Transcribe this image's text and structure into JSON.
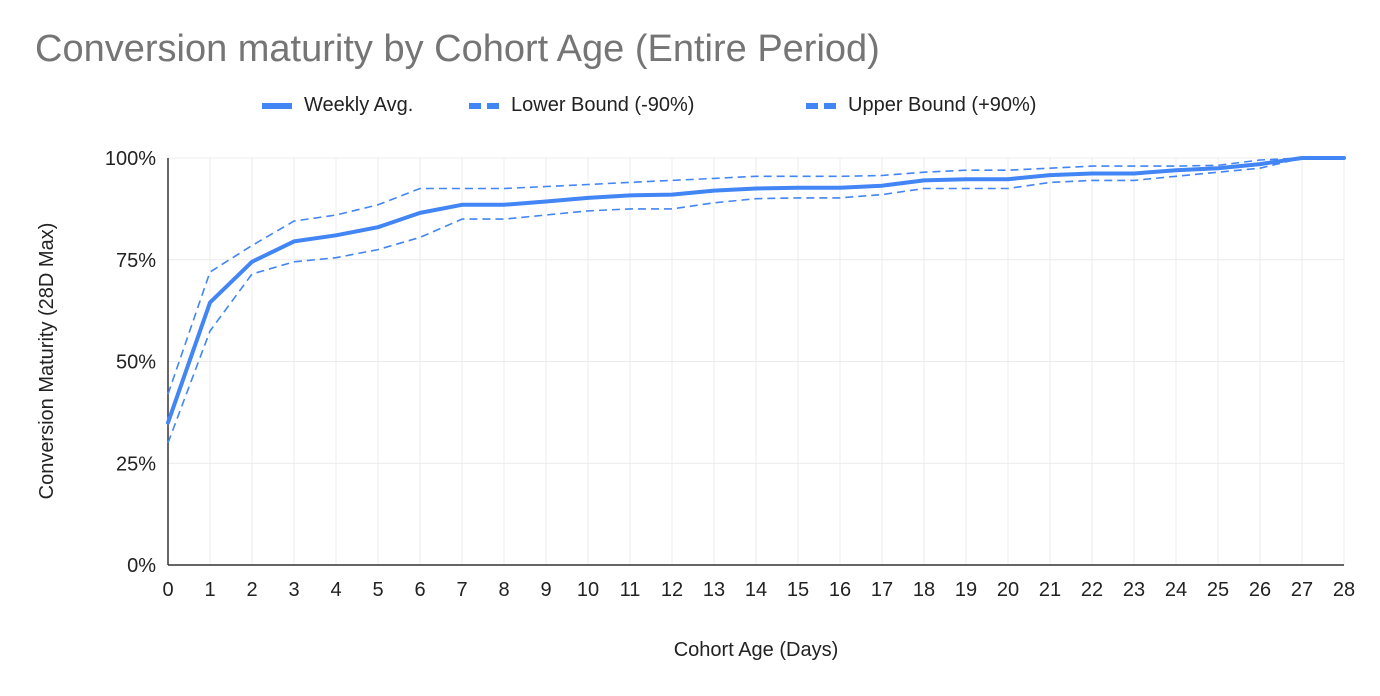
{
  "chart_data": {
    "type": "line",
    "title": "Conversion maturity by Cohort Age (Entire Period)",
    "xlabel": "Cohort Age (Days)",
    "ylabel": "Conversion Maturity (28D Max)",
    "x": [
      0,
      1,
      2,
      3,
      4,
      5,
      6,
      7,
      8,
      9,
      10,
      11,
      12,
      13,
      14,
      15,
      16,
      17,
      18,
      19,
      20,
      21,
      22,
      23,
      24,
      25,
      26,
      27,
      28
    ],
    "xlim": [
      0,
      28
    ],
    "ylim": [
      0,
      100
    ],
    "y_ticks": [
      "0%",
      "25%",
      "50%",
      "75%",
      "100%"
    ],
    "y_tick_values": [
      0,
      25,
      50,
      75,
      100
    ],
    "grid": true,
    "legend_position": "top",
    "series": [
      {
        "name": "Weekly Avg.",
        "style": "solid",
        "color": "#4285f4",
        "values": [
          35,
          64.5,
          74.5,
          79.5,
          81,
          83,
          86.5,
          88.5,
          88.5,
          89.3,
          90.2,
          90.8,
          91,
          92,
          92.5,
          92.7,
          92.7,
          93.2,
          94.5,
          94.8,
          94.8,
          95.8,
          96.2,
          96.2,
          97,
          97.5,
          98.5,
          100,
          100
        ]
      },
      {
        "name": "Lower Bound (-90%)",
        "style": "dashed",
        "color": "#4285f4",
        "values": [
          30,
          57.5,
          71.5,
          74.5,
          75.5,
          77.5,
          80.5,
          85,
          85,
          86,
          87,
          87.5,
          87.5,
          89,
          90,
          90.2,
          90.2,
          91,
          92.5,
          92.5,
          92.5,
          94,
          94.5,
          94.5,
          95.5,
          96.5,
          97.5,
          100,
          100
        ]
      },
      {
        "name": "Upper Bound (+90%)",
        "style": "dashed",
        "color": "#4285f4",
        "values": [
          42,
          72,
          78.5,
          84.5,
          86,
          88.5,
          92.5,
          92.5,
          92.5,
          93,
          93.5,
          94,
          94.5,
          95,
          95.5,
          95.5,
          95.5,
          95.7,
          96.5,
          97,
          97,
          97.5,
          98,
          98,
          98,
          98.2,
          99.5,
          100,
          100
        ]
      }
    ]
  }
}
